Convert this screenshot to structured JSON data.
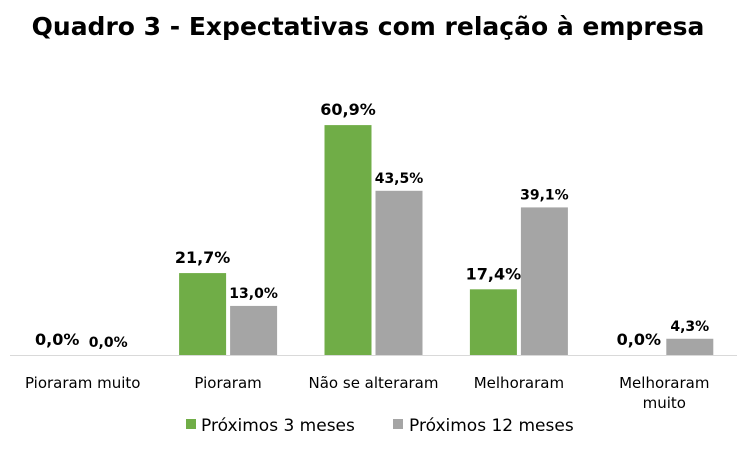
{
  "chart_data": {
    "type": "bar",
    "title": "Quadro 3 - Expectativas com relação à empresa",
    "categories": [
      [
        "Pioraram muito"
      ],
      [
        "Pioraram"
      ],
      [
        "Não se alteraram"
      ],
      [
        "Melhoraram"
      ],
      [
        "Melhoraram",
        "muito"
      ]
    ],
    "series": [
      {
        "name": "Próximos 3 meses",
        "color": "#70ad47",
        "values": [
          0.0,
          21.7,
          60.9,
          17.4,
          0.0
        ],
        "labels": [
          "0,0%",
          "21,7%",
          "60,9%",
          "17,4%",
          "0,0%"
        ]
      },
      {
        "name": "Próximos 12 meses",
        "color": "#a5a5a5",
        "values": [
          0.0,
          13.0,
          43.5,
          39.1,
          4.3
        ],
        "labels": [
          "0,0%",
          "13,0%",
          "43,5%",
          "39,1%",
          "4,3%"
        ]
      }
    ],
    "ylim": [
      0,
      70
    ],
    "grid": false,
    "legend_position": "bottom"
  }
}
